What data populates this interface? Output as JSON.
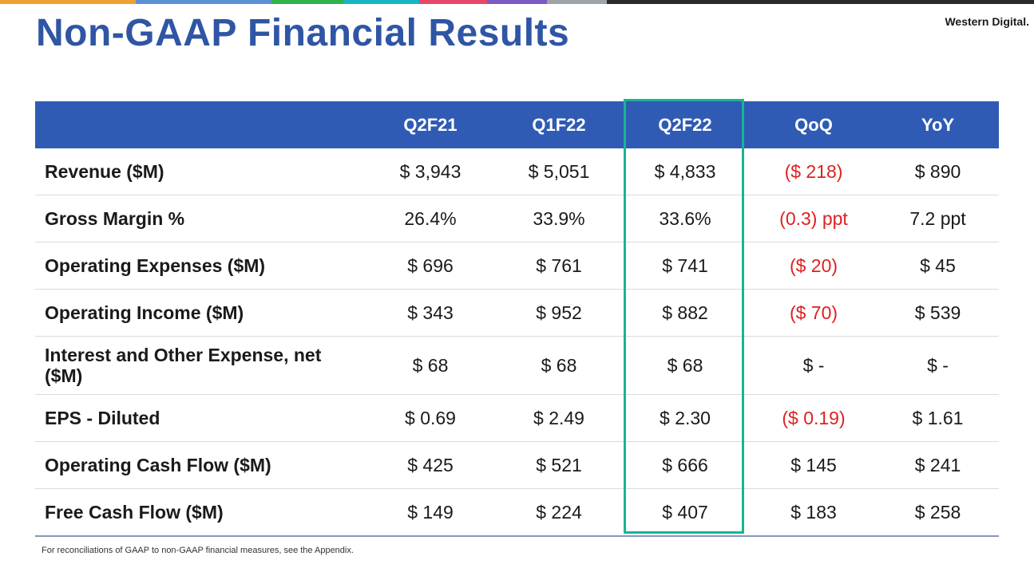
{
  "title": "Non-GAAP Financial Results",
  "brand": "Western Digital.",
  "colors": {
    "title": "#2f55a4",
    "header_bg": "#2f5bb5",
    "highlight_border": "#19b494",
    "negative": "#e02020",
    "topbar": [
      "#f0a030",
      "#5b8fd6",
      "#2cb34a",
      "#18b4c6",
      "#e8476a",
      "#7a5bc2",
      "#9ea3a8",
      "#2a2a2a"
    ]
  },
  "table": {
    "columns": [
      "Q2F21",
      "Q1F22",
      "Q2F22",
      "QoQ",
      "YoY"
    ],
    "highlighted_column": "Q2F22",
    "rows": [
      {
        "label": "Revenue ($M)",
        "q2f21": "$  3,943",
        "q1f22": "$ 5,051",
        "q2f22": "$ 4,833",
        "qoq": "($ 218)",
        "yoy": "$ 890"
      },
      {
        "label": "Gross Margin %",
        "q2f21": "26.4%",
        "q1f22": "33.9%",
        "q2f22": "33.6%",
        "qoq": "(0.3) ppt",
        "yoy": "7.2 ppt"
      },
      {
        "label": "Operating Expenses ($M)",
        "q2f21": "$ 696",
        "q1f22": "$ 761",
        "q2f22": "$ 741",
        "qoq": "($ 20)",
        "yoy": "$ 45"
      },
      {
        "label": "Operating Income ($M)",
        "q2f21": "$ 343",
        "q1f22": "$ 952",
        "q2f22": "$ 882",
        "qoq": "($ 70)",
        "yoy": "$ 539"
      },
      {
        "label": "Interest and Other Expense, net ($M)",
        "q2f21": "$ 68",
        "q1f22": "$ 68",
        "q2f22": "$ 68",
        "qoq": "$ -",
        "yoy": "$ -"
      },
      {
        "label": "EPS - Diluted",
        "q2f21": "$ 0.69",
        "q1f22": "$ 2.49",
        "q2f22": "$ 2.30",
        "qoq": "($ 0.19)",
        "yoy": "$ 1.61"
      },
      {
        "label": "Operating Cash Flow ($M)",
        "q2f21": "$ 425",
        "q1f22": "$ 521",
        "q2f22": "$ 666",
        "qoq": "$ 145",
        "yoy": "$ 241"
      },
      {
        "label": "Free Cash Flow ($M)",
        "q2f21": "$ 149",
        "q1f22": "$ 224",
        "q2f22": "$ 407",
        "qoq": "$ 183",
        "yoy": "$ 258"
      }
    ]
  },
  "footnote": "For reconciliations of GAAP to non-GAAP financial measures, see the Appendix."
}
